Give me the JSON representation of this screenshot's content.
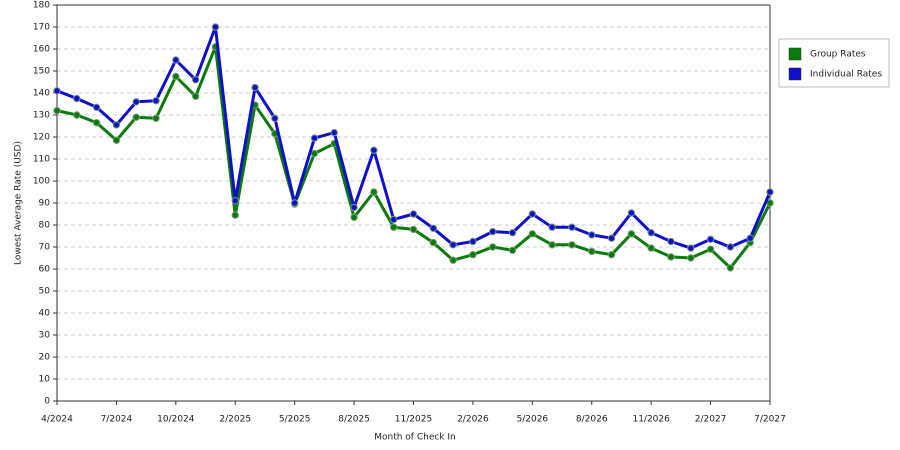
{
  "chart_data": {
    "type": "line",
    "x_label": "Month of Check In",
    "y_label": "Lowest Average Rate (USD)",
    "categories": [
      "4/2024",
      null,
      null,
      "7/2024",
      null,
      null,
      "10/2024",
      null,
      null,
      "2/2025",
      null,
      null,
      "5/2025",
      null,
      null,
      "8/2025",
      null,
      null,
      "11/2025",
      null,
      null,
      "2/2026",
      null,
      null,
      "5/2026",
      null,
      null,
      "8/2026",
      null,
      null,
      "11/2026",
      null,
      null,
      "2/2027",
      null,
      null,
      "7/2027"
    ],
    "series": [
      {
        "name": "Group Rates",
        "color": "#0a7a0a",
        "values": [
          132,
          130,
          126.5,
          118.5,
          129,
          128.5,
          147.5,
          138.5,
          161,
          84.5,
          134.5,
          121.5,
          89.5,
          112.5,
          117,
          83.5,
          95,
          79,
          78,
          72,
          64,
          66.5,
          70,
          68.5,
          76,
          71,
          71,
          68,
          66.5,
          76,
          69.5,
          65.5,
          65,
          69,
          60.5,
          72,
          90
        ]
      },
      {
        "name": "Individual Rates",
        "color": "#1010cc",
        "values": [
          141,
          137.5,
          133.5,
          125.5,
          136,
          136.5,
          155,
          146,
          170,
          91,
          142.5,
          128.5,
          90,
          119.5,
          122,
          88,
          114,
          82.5,
          85,
          78.5,
          71,
          72.5,
          77,
          76.5,
          85,
          79,
          79,
          75.5,
          74,
          85.5,
          76.5,
          72.5,
          69.5,
          73.5,
          70,
          74,
          95
        ]
      }
    ],
    "ylim": [
      0,
      180
    ],
    "yticks": [
      0,
      10,
      20,
      30,
      40,
      50,
      60,
      70,
      80,
      90,
      100,
      110,
      120,
      130,
      140,
      150,
      160,
      170,
      180
    ],
    "grid": true,
    "legend": "right"
  }
}
